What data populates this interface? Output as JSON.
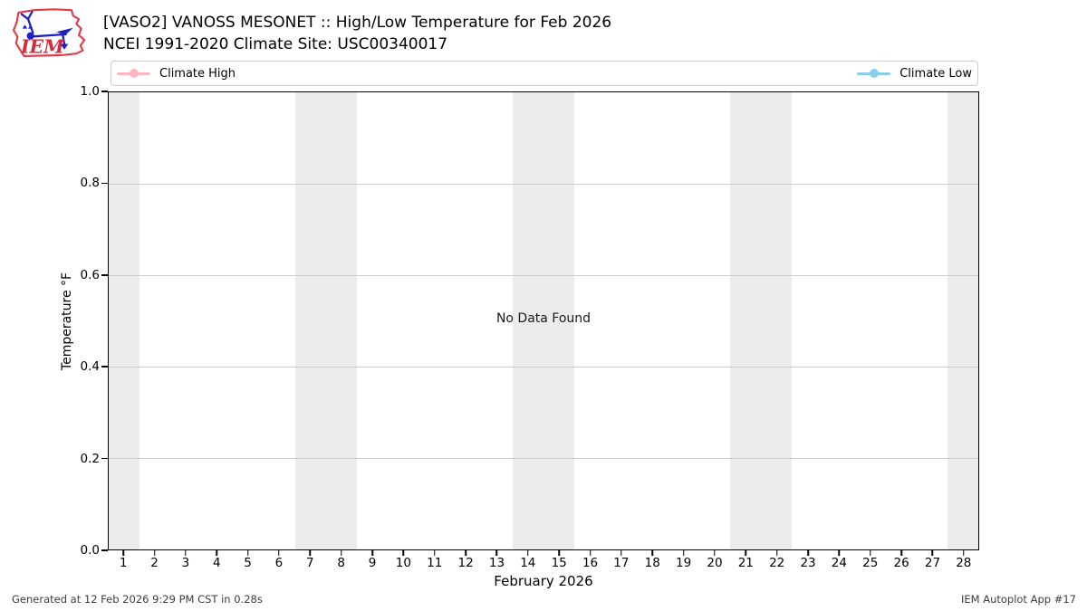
{
  "header": {
    "title": "[VASO2] VANOSS MESONET :: High/Low Temperature for Feb 2026",
    "subtitle": "NCEI 1991-2020 Climate Site: USC00340017",
    "logo": {
      "text": "IEM"
    }
  },
  "legend": {
    "items": [
      {
        "label": "Climate High",
        "color": "#ffb6c1"
      },
      {
        "label": "Climate Low",
        "color": "#87ceeb"
      }
    ]
  },
  "chart_data": {
    "type": "line",
    "title": "[VASO2] VANOSS MESONET :: High/Low Temperature for Feb 2026",
    "subtitle": "NCEI 1991-2020 Climate Site: USC00340017",
    "xlabel": "February 2026",
    "ylabel": "Temperature °F",
    "xlim": [
      0.5,
      28.5
    ],
    "ylim": [
      0.0,
      1.0
    ],
    "yticks": [
      0.0,
      0.2,
      0.4,
      0.6,
      0.8,
      1.0
    ],
    "xticks": [
      1,
      2,
      3,
      4,
      5,
      6,
      7,
      8,
      9,
      10,
      11,
      12,
      13,
      14,
      15,
      16,
      17,
      18,
      19,
      20,
      21,
      22,
      23,
      24,
      25,
      26,
      27,
      28
    ],
    "grid": true,
    "gridline_color": "#cccccc",
    "legend_position": "top, expanded, 2 columns",
    "series": [
      {
        "name": "Climate High",
        "color": "#ffb6c1",
        "x": [],
        "values": []
      },
      {
        "name": "Climate Low",
        "color": "#87ceeb",
        "x": [],
        "values": []
      }
    ],
    "no_data_message": "No Data Found",
    "weekend_shading_day_ranges": [
      [
        0.5,
        1.5
      ],
      [
        6.5,
        8.5
      ],
      [
        13.5,
        15.5
      ],
      [
        20.5,
        22.5
      ],
      [
        27.5,
        28.5
      ]
    ],
    "weekend_shading_color": "#ececec"
  },
  "footer": {
    "generated": "Generated at 12 Feb 2026 9:29 PM CST in 0.28s",
    "app": "IEM Autoplot App #17"
  }
}
